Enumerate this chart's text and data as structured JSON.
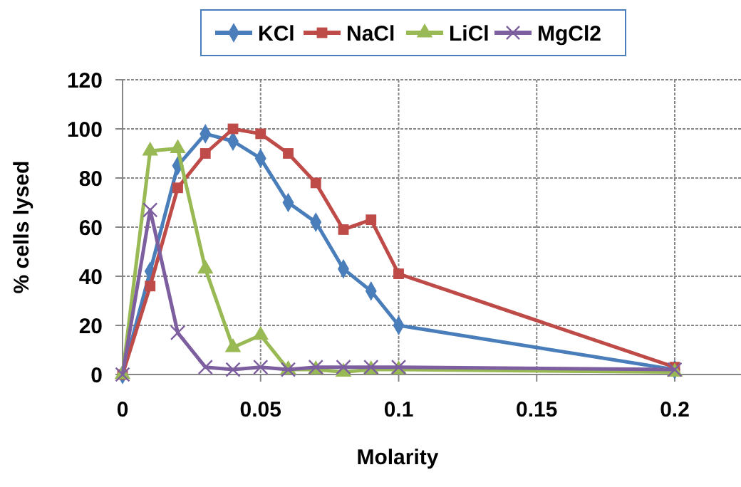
{
  "chart_data": {
    "type": "line",
    "xlabel": "Molarity",
    "ylabel": "% cells lysed",
    "x": [
      0,
      0.01,
      0.02,
      0.03,
      0.04,
      0.05,
      0.06,
      0.07,
      0.08,
      0.09,
      0.1,
      0.2
    ],
    "series": [
      {
        "name": "KCl",
        "color": "#4a7ebb",
        "marker": "diamond",
        "values": [
          0,
          42,
          85,
          98,
          95,
          88,
          70,
          62,
          43,
          34,
          20,
          2
        ]
      },
      {
        "name": "NaCl",
        "color": "#be4b48",
        "marker": "square",
        "values": [
          0,
          36,
          76,
          90,
          100,
          98,
          90,
          78,
          59,
          63,
          41,
          3
        ]
      },
      {
        "name": "LiCl",
        "color": "#98b954",
        "marker": "triangle",
        "values": [
          0,
          91,
          92,
          43,
          11,
          16,
          2,
          2,
          1,
          2,
          2,
          1
        ]
      },
      {
        "name": "MgCl2",
        "color": "#7d5fa0",
        "marker": "cross",
        "values": [
          0,
          67,
          17,
          3,
          2,
          3,
          2,
          3,
          3,
          3,
          3,
          2
        ]
      }
    ],
    "xlim": [
      0,
      0.224
    ],
    "xticks": [
      0,
      0.05,
      0.1,
      0.15,
      0.2
    ],
    "ylim": [
      0,
      120
    ],
    "yticks": [
      0,
      20,
      40,
      60,
      80,
      100,
      120
    ],
    "grid": true,
    "legend": "top"
  }
}
